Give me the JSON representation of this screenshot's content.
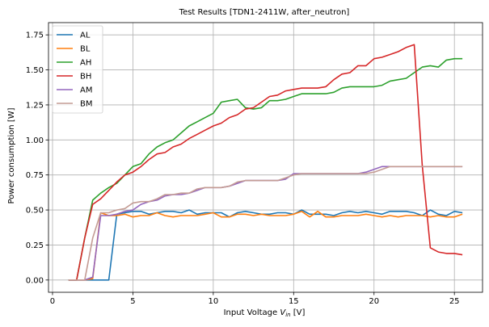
{
  "chart_data": {
    "type": "line",
    "title": "Test Results [TDN1-2411W, after_neutron]",
    "xlabel": "Input Voltage",
    "xlabel_var": "V",
    "xlabel_sub": "in",
    "xlabel_unit": "[V]",
    "ylabel": "Power consumption [W]",
    "xlim": [
      -0.25,
      26.75
    ],
    "ylim": [
      -0.0875,
      1.8375
    ],
    "xticks": [
      0,
      5,
      10,
      15,
      20,
      25
    ],
    "yticks": [
      0.0,
      0.25,
      0.5,
      0.75,
      1.0,
      1.25,
      1.5,
      1.75
    ],
    "ytick_labels": [
      "0.00",
      "0.25",
      "0.50",
      "0.75",
      "1.00",
      "1.25",
      "1.50",
      "1.75"
    ],
    "grid": true,
    "legend_position": "top-left",
    "x": [
      1.0,
      1.5,
      2.0,
      2.5,
      3.0,
      3.5,
      4.0,
      4.5,
      5.0,
      5.5,
      6.0,
      6.5,
      7.0,
      7.5,
      8.0,
      8.5,
      9.0,
      9.5,
      10.0,
      10.5,
      11.0,
      11.5,
      12.0,
      12.5,
      13.0,
      13.5,
      14.0,
      14.5,
      15.0,
      15.5,
      16.0,
      16.5,
      17.0,
      17.5,
      18.0,
      18.5,
      19.0,
      19.5,
      20.0,
      20.5,
      21.0,
      21.5,
      22.0,
      22.5,
      23.0,
      23.5,
      24.0,
      24.5,
      25.0,
      25.5
    ],
    "series": [
      {
        "name": "AL",
        "color": "#1f77b4",
        "values": [
          0,
          0,
          0,
          0,
          0,
          0,
          0.47,
          0.48,
          0.49,
          0.49,
          0.47,
          0.48,
          0.49,
          0.49,
          0.48,
          0.5,
          0.47,
          0.48,
          0.48,
          0.48,
          0.45,
          0.48,
          0.49,
          0.48,
          0.47,
          0.47,
          0.48,
          0.48,
          0.47,
          0.5,
          0.47,
          0.47,
          0.47,
          0.46,
          0.48,
          0.49,
          0.48,
          0.49,
          0.48,
          0.47,
          0.49,
          0.49,
          0.49,
          0.48,
          0.46,
          0.5,
          0.47,
          0.46,
          0.49,
          0.48
        ]
      },
      {
        "name": "BL",
        "color": "#ff7f0e",
        "values": [
          0,
          0,
          0,
          0.01,
          0.48,
          0.46,
          0.46,
          0.47,
          0.45,
          0.46,
          0.46,
          0.48,
          0.46,
          0.45,
          0.46,
          0.46,
          0.46,
          0.47,
          0.48,
          0.45,
          0.45,
          0.47,
          0.47,
          0.46,
          0.47,
          0.46,
          0.46,
          0.46,
          0.47,
          0.49,
          0.45,
          0.49,
          0.45,
          0.45,
          0.46,
          0.46,
          0.46,
          0.47,
          0.46,
          0.45,
          0.46,
          0.45,
          0.46,
          0.46,
          0.46,
          0.45,
          0.46,
          0.45,
          0.45,
          0.47
        ]
      },
      {
        "name": "AH",
        "color": "#2ca02c",
        "values": [
          0,
          0,
          0.3,
          0.57,
          0.62,
          0.66,
          0.69,
          0.75,
          0.81,
          0.83,
          0.9,
          0.95,
          0.98,
          1.0,
          1.05,
          1.1,
          1.13,
          1.16,
          1.19,
          1.27,
          1.28,
          1.29,
          1.23,
          1.22,
          1.23,
          1.28,
          1.28,
          1.29,
          1.31,
          1.33,
          1.33,
          1.33,
          1.33,
          1.34,
          1.37,
          1.38,
          1.38,
          1.38,
          1.38,
          1.39,
          1.42,
          1.43,
          1.44,
          1.48,
          1.52,
          1.53,
          1.52,
          1.57,
          1.58,
          1.58
        ]
      },
      {
        "name": "BH",
        "color": "#d62728",
        "values": [
          0,
          0,
          0.3,
          0.54,
          0.58,
          0.64,
          0.7,
          0.75,
          0.77,
          0.81,
          0.86,
          0.9,
          0.91,
          0.95,
          0.97,
          1.01,
          1.04,
          1.07,
          1.1,
          1.12,
          1.16,
          1.18,
          1.22,
          1.23,
          1.27,
          1.31,
          1.32,
          1.35,
          1.36,
          1.37,
          1.37,
          1.37,
          1.38,
          1.43,
          1.47,
          1.48,
          1.53,
          1.53,
          1.58,
          1.59,
          1.61,
          1.63,
          1.66,
          1.68,
          0.82,
          0.23,
          0.2,
          0.19,
          0.19,
          0.18
        ]
      },
      {
        "name": "AM",
        "color": "#9467bd",
        "values": [
          0,
          0,
          0,
          0.02,
          0.46,
          0.46,
          0.47,
          0.49,
          0.5,
          0.54,
          0.56,
          0.57,
          0.6,
          0.61,
          0.61,
          0.62,
          0.64,
          0.66,
          0.66,
          0.66,
          0.67,
          0.69,
          0.71,
          0.71,
          0.71,
          0.71,
          0.71,
          0.72,
          0.76,
          0.76,
          0.76,
          0.76,
          0.76,
          0.76,
          0.76,
          0.76,
          0.76,
          0.77,
          0.79,
          0.81,
          0.81,
          0.81,
          0.81,
          0.81,
          0.81,
          0.81,
          0.81,
          0.81,
          0.81,
          0.81
        ]
      },
      {
        "name": "BM",
        "color": "#c49c94",
        "values": [
          0,
          0,
          0,
          0.3,
          0.48,
          0.48,
          0.5,
          0.51,
          0.55,
          0.56,
          0.56,
          0.58,
          0.61,
          0.61,
          0.62,
          0.62,
          0.65,
          0.66,
          0.66,
          0.66,
          0.67,
          0.7,
          0.71,
          0.71,
          0.71,
          0.71,
          0.71,
          0.73,
          0.75,
          0.76,
          0.76,
          0.76,
          0.76,
          0.76,
          0.76,
          0.76,
          0.76,
          0.76,
          0.77,
          0.79,
          0.81,
          0.81,
          0.81,
          0.81,
          0.81,
          0.81,
          0.81,
          0.81,
          0.81,
          0.81
        ]
      }
    ]
  }
}
